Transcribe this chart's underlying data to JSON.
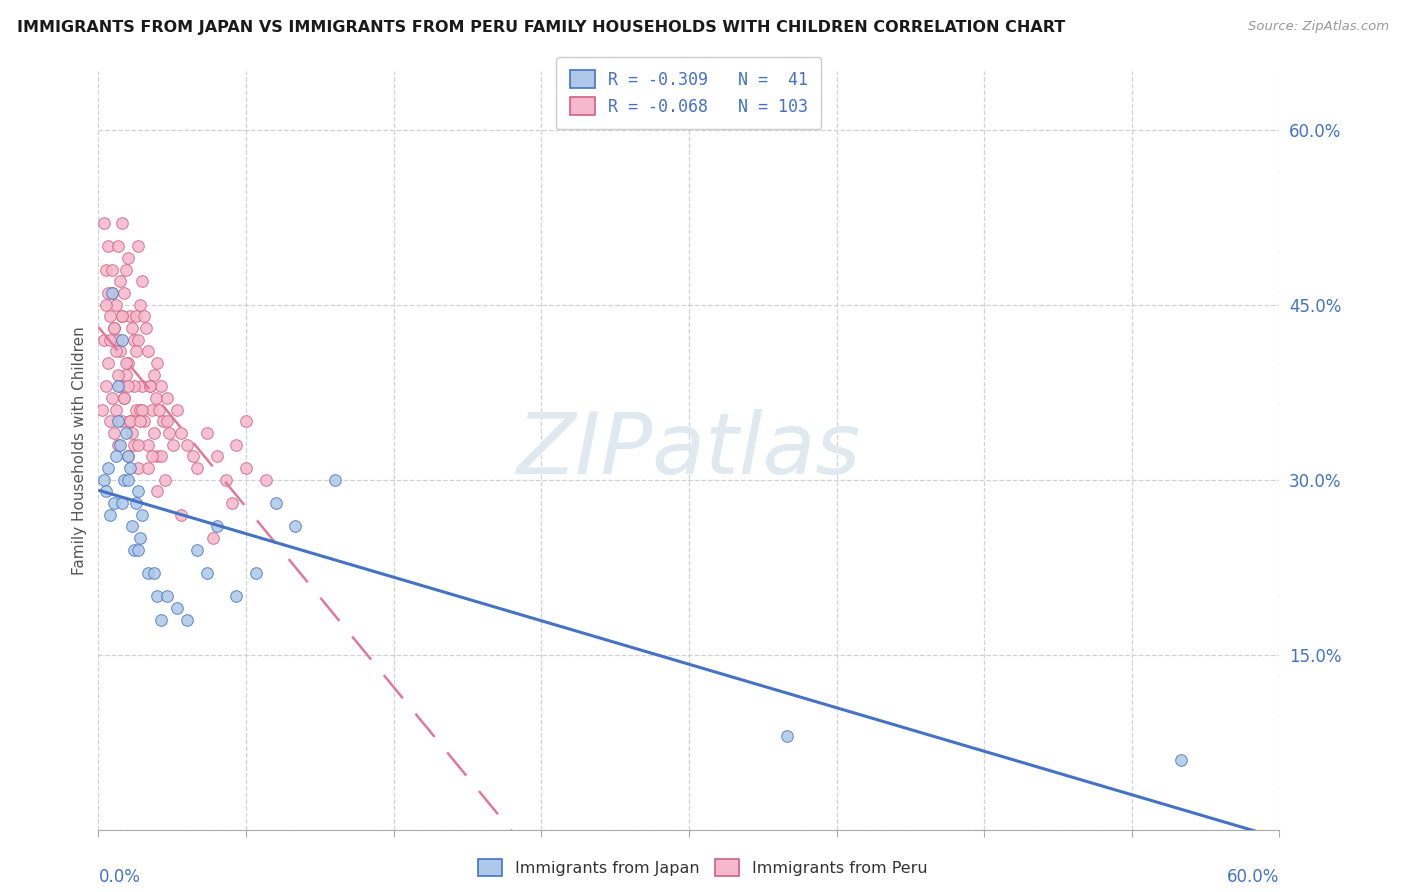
{
  "title": "IMMIGRANTS FROM JAPAN VS IMMIGRANTS FROM PERU FAMILY HOUSEHOLDS WITH CHILDREN CORRELATION CHART",
  "source": "Source: ZipAtlas.com",
  "ylabel": "Family Households with Children",
  "y_tick_values": [
    0,
    15,
    30,
    45,
    60
  ],
  "y_tick_labels": [
    "",
    "15.0%",
    "30.0%",
    "45.0%",
    "60.0%"
  ],
  "x_lim": [
    0,
    60
  ],
  "y_lim": [
    0,
    65
  ],
  "legend_japan_R": "-0.309",
  "legend_japan_N": "41",
  "legend_peru_R": "-0.068",
  "legend_peru_N": "103",
  "color_japan_fill": "#adc8e8",
  "color_japan_edge": "#4472c4",
  "color_peru_fill": "#f5b8cc",
  "color_peru_edge": "#d06080",
  "color_japan_line": "#4472c4",
  "color_peru_line": "#e07898",
  "color_text_blue": "#4472c4",
  "watermark_color": "#e0e8f0",
  "japan_x": [
    0.3,
    0.4,
    0.5,
    0.6,
    0.7,
    0.8,
    0.9,
    1.0,
    1.0,
    1.1,
    1.2,
    1.3,
    1.4,
    1.5,
    1.6,
    1.7,
    1.8,
    1.9,
    2.0,
    2.1,
    2.2,
    2.5,
    2.8,
    3.0,
    3.2,
    3.5,
    4.0,
    4.5,
    5.0,
    5.5,
    6.0,
    7.0,
    8.0,
    9.0,
    10.0,
    12.0,
    1.2,
    1.5,
    2.0,
    35.0,
    55.0
  ],
  "japan_y": [
    30,
    29,
    31,
    27,
    46,
    28,
    32,
    35,
    38,
    33,
    42,
    30,
    34,
    30,
    31,
    26,
    24,
    28,
    29,
    25,
    27,
    22,
    22,
    20,
    18,
    20,
    19,
    18,
    24,
    22,
    26,
    20,
    22,
    28,
    26,
    30,
    28,
    32,
    24,
    8,
    6
  ],
  "peru_x": [
    0.2,
    0.3,
    0.3,
    0.4,
    0.4,
    0.5,
    0.5,
    0.6,
    0.6,
    0.7,
    0.7,
    0.8,
    0.8,
    0.9,
    0.9,
    1.0,
    1.0,
    1.0,
    1.1,
    1.1,
    1.2,
    1.2,
    1.2,
    1.3,
    1.3,
    1.4,
    1.4,
    1.5,
    1.5,
    1.5,
    1.6,
    1.6,
    1.7,
    1.7,
    1.8,
    1.8,
    1.9,
    1.9,
    2.0,
    2.0,
    2.0,
    2.1,
    2.1,
    2.2,
    2.2,
    2.3,
    2.3,
    2.4,
    2.5,
    2.5,
    2.6,
    2.7,
    2.8,
    2.9,
    3.0,
    3.0,
    3.1,
    3.2,
    3.3,
    3.5,
    3.6,
    3.8,
    4.0,
    4.2,
    4.5,
    5.0,
    5.5,
    6.0,
    6.5,
    7.0,
    7.5,
    0.5,
    0.8,
    1.1,
    1.4,
    1.8,
    2.2,
    2.8,
    3.2,
    0.6,
    1.0,
    1.3,
    1.6,
    2.0,
    2.5,
    3.0,
    0.4,
    0.9,
    1.5,
    2.1,
    2.7,
    3.4,
    4.2,
    5.8,
    0.7,
    1.2,
    1.9,
    2.6,
    3.5,
    4.8,
    6.8,
    7.5,
    8.5
  ],
  "peru_y": [
    36,
    52,
    42,
    48,
    38,
    50,
    40,
    44,
    35,
    46,
    37,
    43,
    34,
    45,
    36,
    50,
    42,
    33,
    47,
    38,
    52,
    44,
    35,
    46,
    37,
    48,
    39,
    49,
    40,
    32,
    44,
    35,
    43,
    34,
    42,
    33,
    44,
    36,
    50,
    42,
    31,
    45,
    36,
    47,
    38,
    44,
    35,
    43,
    41,
    33,
    38,
    36,
    39,
    37,
    40,
    32,
    36,
    38,
    35,
    37,
    34,
    33,
    36,
    34,
    33,
    31,
    34,
    32,
    30,
    33,
    31,
    46,
    43,
    41,
    40,
    38,
    36,
    34,
    32,
    42,
    39,
    37,
    35,
    33,
    31,
    29,
    45,
    41,
    38,
    35,
    32,
    30,
    27,
    25,
    48,
    44,
    41,
    38,
    35,
    32,
    28,
    35,
    30
  ]
}
